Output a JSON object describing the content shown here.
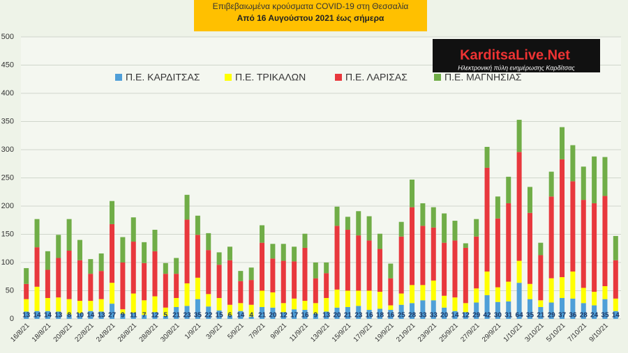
{
  "chart_data": {
    "type": "stacked_bar",
    "title": "Επιβεβαιωμένα κρούσματα COVID-19 στη Θεσσαλία",
    "subtitle": "Από 16 Αυγούστου 2021 έως σήμερα",
    "logo": {
      "name": "KarditsaLive.Net",
      "tagline": "Ηλεκτρονική πύλη ενημέρωσης Καρδίτσας"
    },
    "categories": [
      "16/8/21",
      null,
      "18/8/21",
      null,
      "20/8/21",
      null,
      "22/8/21",
      null,
      "24/8/21",
      null,
      "26/8/21",
      null,
      "28/8/21",
      null,
      "30/8/21",
      null,
      "1/9/21",
      null,
      "3/9/21",
      null,
      "5/9/21",
      null,
      "7/9/21",
      null,
      "9/9/21",
      null,
      "11/9/21",
      null,
      "13/9/21",
      null,
      "15/9/21",
      null,
      "17/9/21",
      null,
      "19/9/21",
      null,
      "21/9/21",
      null,
      "23/9/21",
      null,
      "25/9/21",
      null,
      "27/9/21",
      null,
      "29/9/21",
      null,
      "1/10/21",
      null,
      "3/10/21",
      null,
      "5/10/21",
      null,
      "7/10/21",
      null,
      "9/10/21",
      null
    ],
    "series": [
      {
        "name": "Π.Ε. ΚΑΡΔΙΤΣΑΣ",
        "color": "#4f9fd8",
        "values": [
          13,
          14,
          14,
          13,
          8,
          10,
          14,
          13,
          27,
          9,
          11,
          7,
          12,
          5,
          21,
          23,
          35,
          22,
          15,
          6,
          14,
          4,
          21,
          20,
          12,
          17,
          16,
          9,
          13,
          20,
          21,
          23,
          16,
          18,
          16,
          25,
          28,
          33,
          33,
          20,
          14,
          12,
          29,
          42,
          30,
          31,
          64,
          35,
          21,
          29,
          37,
          36,
          28,
          24,
          35,
          14
        ]
      },
      {
        "name": "Π.Ε. ΤΡΙΚΑΛΩΝ",
        "color": "#ffff00",
        "values": [
          22,
          43,
          23,
          25,
          27,
          22,
          18,
          22,
          37,
          8,
          34,
          26,
          28,
          15,
          16,
          40,
          38,
          22,
          22,
          19,
          14,
          21,
          29,
          27,
          16,
          19,
          16,
          19,
          24,
          32,
          29,
          27,
          34,
          30,
          8,
          20,
          32,
          27,
          35,
          21,
          24,
          16,
          25,
          42,
          26,
          35,
          39,
          27,
          12,
          43,
          37,
          48,
          27,
          24,
          23,
          22
        ]
      },
      {
        "name": "Π.Ε. ΛΑΡΙΣΑΣ",
        "color": "#e8383d",
        "values": [
          27,
          70,
          50,
          70,
          86,
          72,
          48,
          50,
          104,
          83,
          92,
          66,
          80,
          60,
          43,
          113,
          76,
          78,
          59,
          79,
          39,
          44,
          85,
          60,
          75,
          66,
          94,
          44,
          44,
          113,
          108,
          98,
          89,
          76,
          48,
          101,
          138,
          105,
          94,
          94,
          101,
          98,
          92,
          184,
          122,
          139,
          193,
          126,
          80,
          145,
          209,
          160,
          156,
          157,
          160,
          68
        ]
      },
      {
        "name": "Π.Ε. ΜΑΓΝΗΣΙΑΣ",
        "color": "#70ad47",
        "values": [
          28,
          50,
          33,
          41,
          56,
          36,
          26,
          31,
          41,
          45,
          43,
          37,
          38,
          19,
          28,
          44,
          34,
          30,
          22,
          24,
          18,
          22,
          31,
          26,
          30,
          26,
          25,
          28,
          19,
          34,
          23,
          43,
          43,
          27,
          26,
          26,
          49,
          40,
          36,
          52,
          35,
          8,
          31,
          37,
          39,
          47,
          57,
          46,
          22,
          44,
          57,
          64,
          59,
          83,
          69,
          43
        ]
      }
    ],
    "ylim": [
      0,
      500
    ],
    "yticks": [
      0,
      50,
      100,
      150,
      200,
      250,
      300,
      350,
      400,
      450,
      500
    ],
    "grid": true
  }
}
